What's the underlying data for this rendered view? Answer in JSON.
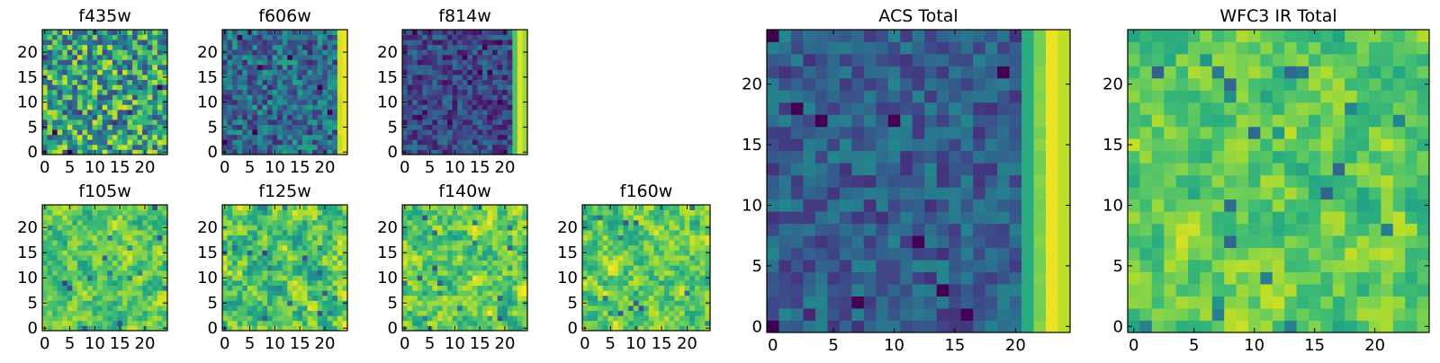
{
  "chart_data": [
    {
      "type": "heatmap",
      "title": "f435w",
      "colormap": "viridis",
      "xlim": [
        0,
        25
      ],
      "ylim": [
        0,
        25
      ],
      "xticks": [
        0,
        5,
        10,
        15,
        20
      ],
      "yticks": [
        0,
        5,
        10,
        15,
        20
      ],
      "grid": false,
      "pattern": "noise",
      "edge_column": "none",
      "mean_level": 0.58,
      "noise_level": 0.18
    },
    {
      "type": "heatmap",
      "title": "f606w",
      "colormap": "viridis",
      "xlim": [
        0,
        25
      ],
      "ylim": [
        0,
        25
      ],
      "xticks": [
        0,
        5,
        10,
        15,
        20
      ],
      "yticks": [
        0,
        5,
        10,
        15,
        20
      ],
      "grid": false,
      "pattern": "noise",
      "edge_column": "bright right edge (x≈23-24)",
      "mean_level": 0.35,
      "noise_level": 0.12
    },
    {
      "type": "heatmap",
      "title": "f814w",
      "colormap": "viridis",
      "xlim": [
        0,
        25
      ],
      "ylim": [
        0,
        25
      ],
      "xticks": [
        0,
        5,
        10,
        15,
        20
      ],
      "yticks": [
        0,
        5,
        10,
        15,
        20
      ],
      "grid": false,
      "pattern": "noise",
      "edge_column": "bright right edge (x≈22-24)",
      "mean_level": 0.22,
      "noise_level": 0.09
    },
    {
      "type": "heatmap",
      "title": "f105w",
      "colormap": "viridis",
      "xlim": [
        0,
        25
      ],
      "ylim": [
        0,
        25
      ],
      "xticks": [
        0,
        5,
        10,
        15,
        20
      ],
      "yticks": [
        0,
        5,
        10,
        15,
        20
      ],
      "grid": false,
      "pattern": "smooth",
      "edge_column": "none",
      "mean_level": 0.74,
      "noise_level": 0.16
    },
    {
      "type": "heatmap",
      "title": "f125w",
      "colormap": "viridis",
      "xlim": [
        0,
        25
      ],
      "ylim": [
        0,
        25
      ],
      "xticks": [
        0,
        5,
        10,
        15,
        20
      ],
      "yticks": [
        0,
        5,
        10,
        15,
        20
      ],
      "grid": false,
      "pattern": "smooth",
      "edge_column": "none",
      "mean_level": 0.72,
      "noise_level": 0.2
    },
    {
      "type": "heatmap",
      "title": "f140w",
      "colormap": "viridis",
      "xlim": [
        0,
        25
      ],
      "ylim": [
        0,
        25
      ],
      "xticks": [
        0,
        5,
        10,
        15,
        20
      ],
      "yticks": [
        0,
        5,
        10,
        15,
        20
      ],
      "grid": false,
      "pattern": "smooth",
      "edge_column": "none",
      "mean_level": 0.75,
      "noise_level": 0.18
    },
    {
      "type": "heatmap",
      "title": "f160w",
      "colormap": "viridis",
      "xlim": [
        0,
        25
      ],
      "ylim": [
        0,
        25
      ],
      "xticks": [
        0,
        5,
        10,
        15,
        20
      ],
      "yticks": [
        0,
        5,
        10,
        15,
        20
      ],
      "grid": false,
      "pattern": "smooth",
      "edge_column": "none",
      "mean_level": 0.76,
      "noise_level": 0.17
    },
    {
      "type": "heatmap",
      "title": "ACS Total",
      "colormap": "viridis",
      "xlim": [
        0,
        25
      ],
      "ylim": [
        0,
        25
      ],
      "xticks": [
        0,
        5,
        10,
        15,
        20
      ],
      "yticks": [
        0,
        5,
        10,
        15,
        20
      ],
      "grid": false,
      "pattern": "noise",
      "edge_column": "bright right edge (x≈21-24)",
      "mean_level": 0.3,
      "noise_level": 0.08
    },
    {
      "type": "heatmap",
      "title": "WFC3 IR Total",
      "colormap": "viridis",
      "xlim": [
        0,
        25
      ],
      "ylim": [
        0,
        25
      ],
      "xticks": [
        0,
        5,
        10,
        15,
        20
      ],
      "yticks": [
        0,
        5,
        10,
        15,
        20
      ],
      "grid": false,
      "pattern": "smooth",
      "edge_column": "none",
      "mean_level": 0.76,
      "noise_level": 0.14
    }
  ]
}
